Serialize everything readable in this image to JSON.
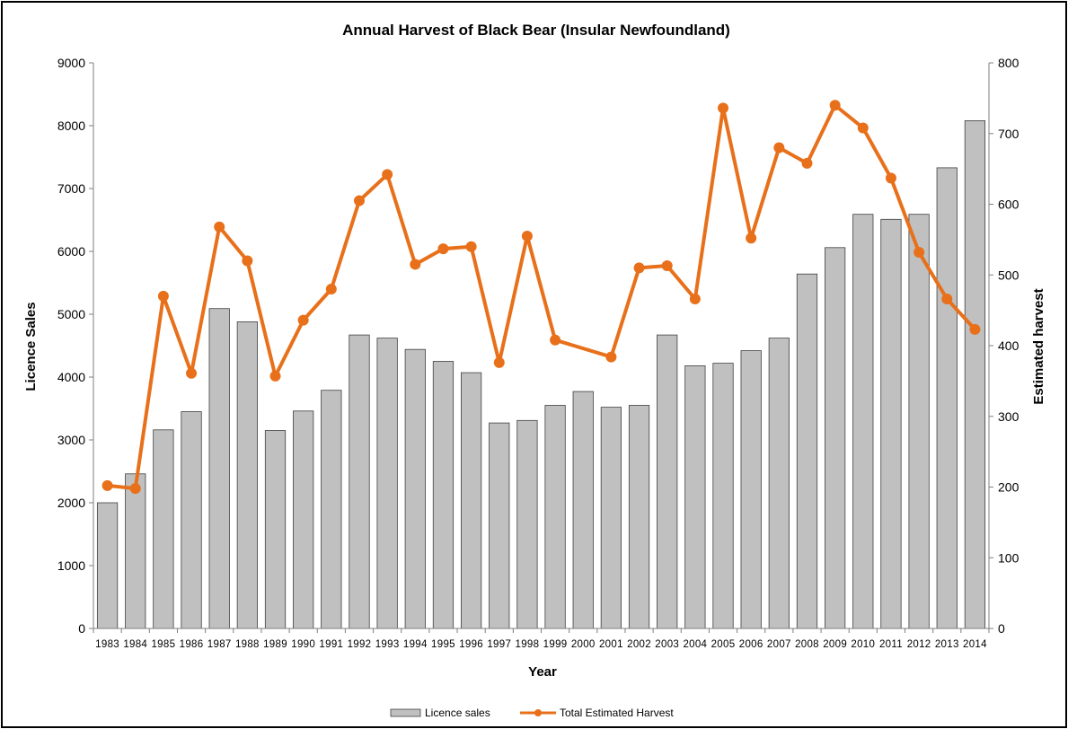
{
  "chart_data": {
    "type": "bar",
    "title": "Annual Harvest of Black Bear (Insular Newfoundland)",
    "xlabel": "Year",
    "ylabel": "Licence Sales",
    "y2label": "Estimated harvest",
    "ylim": [
      0,
      9000
    ],
    "y2lim": [
      0,
      800
    ],
    "yticks": [
      "0",
      "1000",
      "2000",
      "3000",
      "4000",
      "5000",
      "6000",
      "7000",
      "8000",
      "9000"
    ],
    "y2ticks": [
      "0",
      "100",
      "200",
      "300",
      "400",
      "500",
      "600",
      "700",
      "800"
    ],
    "categories": [
      "1983",
      "1984",
      "1985",
      "1986",
      "1987",
      "1988",
      "1989",
      "1990",
      "1991",
      "1992",
      "1993",
      "1994",
      "1995",
      "1996",
      "1997",
      "1998",
      "1999",
      "2000",
      "2001",
      "2002",
      "2003",
      "2004",
      "2005",
      "2006",
      "2007",
      "2008",
      "2009",
      "2010",
      "2011",
      "2012",
      "2013",
      "2014"
    ],
    "series": [
      {
        "name": "Licence sales",
        "type": "bar",
        "axis": "left",
        "color": "#c0c0c0",
        "values": [
          2000,
          2460,
          3160,
          3450,
          5090,
          4880,
          3150,
          3460,
          3790,
          4670,
          4620,
          4440,
          4250,
          4070,
          3270,
          3310,
          3550,
          3770,
          3520,
          3550,
          4670,
          4180,
          4220,
          4420,
          4620,
          5640,
          6060,
          6590,
          6510,
          6590,
          7330,
          8080
        ]
      },
      {
        "name": "Total Estimated Harvest",
        "type": "line",
        "axis": "right",
        "color": "#e8701a",
        "values": [
          202,
          198,
          470,
          361,
          568,
          520,
          357,
          436,
          480,
          605,
          642,
          515,
          537,
          540,
          376,
          555,
          408,
          null,
          384,
          510,
          513,
          466,
          736,
          552,
          680,
          658,
          740,
          708,
          637,
          532,
          466,
          423
        ]
      }
    ],
    "legend_position": "bottom-center",
    "grid": false
  }
}
